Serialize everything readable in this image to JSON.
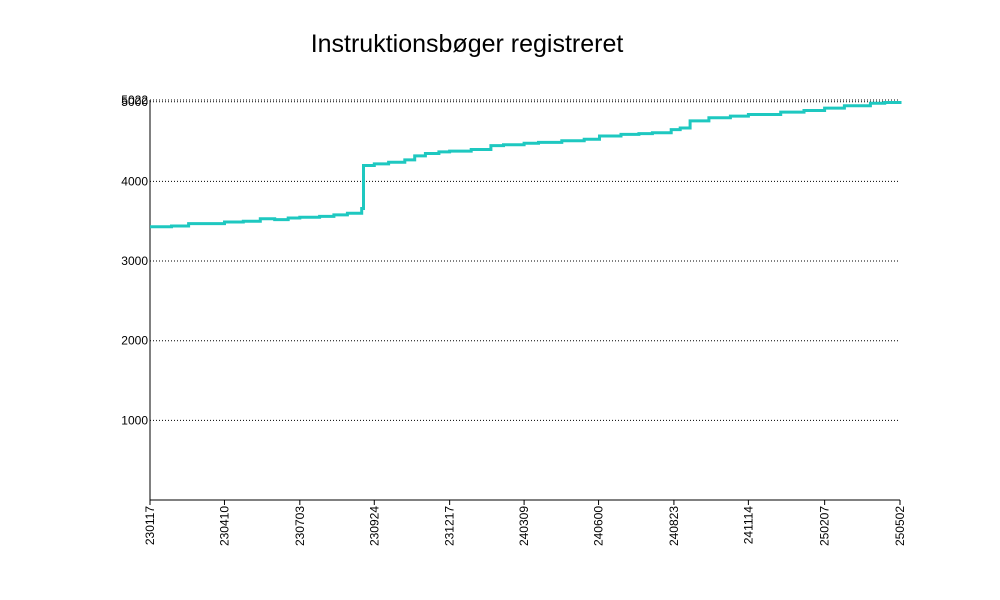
{
  "chart_data": {
    "type": "line",
    "title": "Instruktionsbøger registreret",
    "xlabel": "",
    "ylabel": "",
    "x_tick_labels": [
      "230117",
      "230410",
      "230703",
      "230924",
      "231217",
      "240309",
      "240600",
      "240823",
      "241114",
      "250207",
      "250502"
    ],
    "y_tick_labels": [
      "1000",
      "2000",
      "3000",
      "4000",
      "5000",
      "5022"
    ],
    "y_ticks": [
      1000,
      2000,
      3000,
      4000,
      5000,
      5022
    ],
    "ylim": [
      0,
      5022
    ],
    "grid": "horizontal-dotted",
    "line_color": "#1ec8c0",
    "series": [
      {
        "x": [
          "2023-01-17",
          "2023-02-10",
          "2023-03-01",
          "2023-03-25",
          "2023-04-10",
          "2023-05-01",
          "2023-05-20",
          "2023-06-05",
          "2023-06-20",
          "2023-07-03",
          "2023-07-25",
          "2023-08-10",
          "2023-08-25",
          "2023-09-10",
          "2023-09-12",
          "2023-09-24",
          "2023-10-10",
          "2023-10-28",
          "2023-11-08",
          "2023-11-20",
          "2023-12-05",
          "2023-12-17",
          "2024-01-10",
          "2024-02-01",
          "2024-02-15",
          "2024-03-09",
          "2024-03-25",
          "2024-04-20",
          "2024-05-15",
          "2024-06-01",
          "2024-06-25",
          "2024-07-15",
          "2024-07-30",
          "2024-08-20",
          "2024-08-30",
          "2024-09-10",
          "2024-10-01",
          "2024-10-25",
          "2024-11-14",
          "2024-12-20",
          "2025-01-15",
          "2025-02-07",
          "2025-03-01",
          "2025-03-30",
          "2025-04-15",
          "2025-05-02"
        ],
        "y": [
          3430,
          3440,
          3470,
          3470,
          3490,
          3500,
          3530,
          3520,
          3540,
          3550,
          3560,
          3580,
          3600,
          3660,
          4200,
          4220,
          4240,
          4270,
          4320,
          4350,
          4370,
          4380,
          4400,
          4450,
          4460,
          4480,
          4490,
          4510,
          4530,
          4570,
          4590,
          4600,
          4610,
          4650,
          4670,
          4760,
          4800,
          4820,
          4840,
          4870,
          4890,
          4920,
          4950,
          4980,
          4990,
          5010
        ]
      }
    ]
  }
}
